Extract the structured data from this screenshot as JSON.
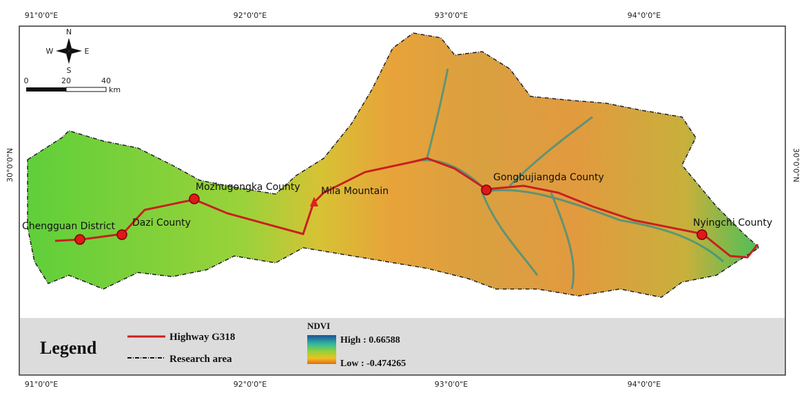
{
  "map": {
    "top_ticks": [
      "91°0'0\"E",
      "92°0'0\"E",
      "93°0'0\"E",
      "94°0'0\"E"
    ],
    "bottom_ticks": [
      "91°0'0\"E",
      "92°0'0\"E",
      "93°0'0\"E",
      "94°0'0\"E"
    ],
    "left_tick": "30°0'0\"N",
    "right_tick": "30°0'0\"N"
  },
  "compass": {
    "n": "N",
    "s": "S",
    "e": "E",
    "w": "W"
  },
  "scale_bar": {
    "labels": [
      "0",
      "20",
      "40"
    ],
    "unit": "km"
  },
  "places": [
    "Chengguan District",
    "Dazi County",
    "Mozhugongka County",
    "Mila Mountain",
    "Gongbujiangda County",
    "Nyingchi County"
  ],
  "legend": {
    "title": "Legend",
    "highway": "Highway G318",
    "area": "Research area",
    "ndvi_title": "NDVI",
    "high": "High : 0.66588",
    "low": "Low : -0.474265"
  }
}
